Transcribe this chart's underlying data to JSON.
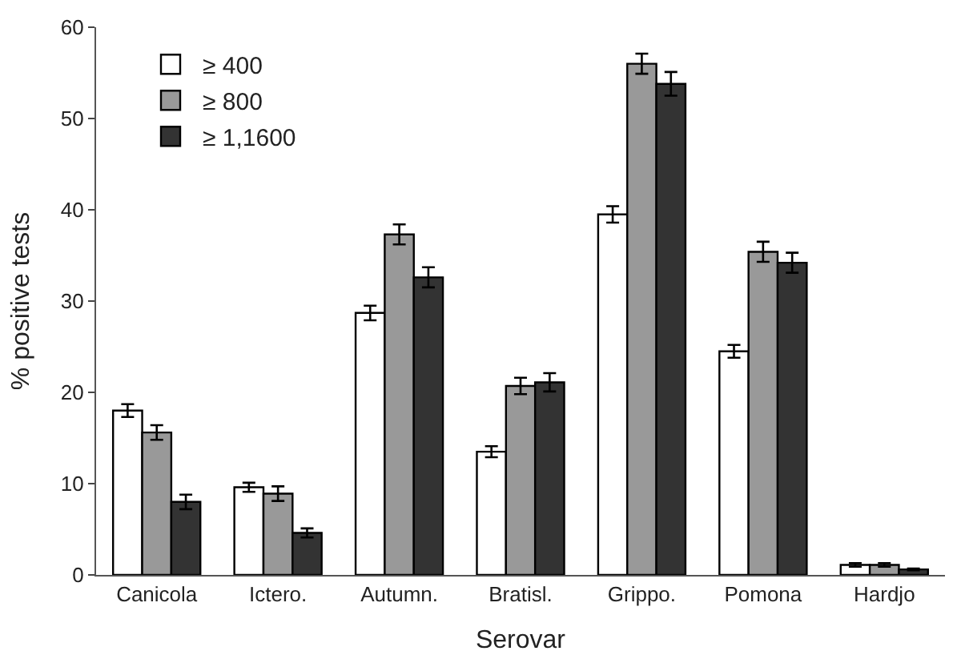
{
  "chart_data": {
    "type": "bar",
    "xlabel": "Serovar",
    "ylabel": "% positive tests",
    "categories": [
      "Canicola",
      "Ictero.",
      "Autumn.",
      "Bratisl.",
      "Grippo.",
      "Pomona",
      "Hardjo"
    ],
    "series": [
      {
        "name": "≥ 400",
        "color": "#ffffff",
        "values": [
          18,
          9.6,
          28.7,
          13.5,
          39.5,
          24.5,
          1.1
        ],
        "errors": [
          0.7,
          0.5,
          0.8,
          0.6,
          0.9,
          0.7,
          0.2
        ]
      },
      {
        "name": "≥ 800",
        "color": "#999999",
        "values": [
          15.6,
          8.9,
          37.3,
          20.7,
          56,
          35.4,
          1.1
        ],
        "errors": [
          0.8,
          0.8,
          1.1,
          0.9,
          1.1,
          1.1,
          0.2
        ]
      },
      {
        "name": "≥ 1,1600",
        "color": "#333333",
        "values": [
          8,
          4.6,
          32.6,
          21.1,
          53.8,
          34.2,
          0.6
        ],
        "errors": [
          0.8,
          0.5,
          1.1,
          1.0,
          1.3,
          1.1,
          0.1
        ]
      }
    ],
    "ylim": [
      0,
      60
    ],
    "yticks": [
      0,
      10,
      20,
      30,
      40,
      50,
      60
    ],
    "grid": false,
    "legend": "top left"
  }
}
